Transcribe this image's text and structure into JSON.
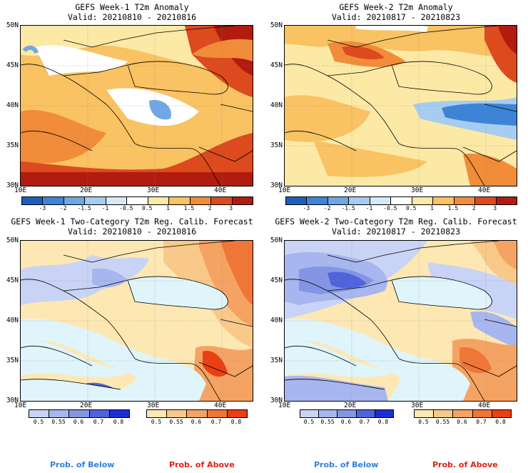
{
  "panels": [
    {
      "title": "GEFS Week-1 T2m Anomaly",
      "valid": "Valid: 20210810 - 20210816",
      "kind": "anom"
    },
    {
      "title": "GEFS Week-2 T2m Anomaly",
      "valid": "Valid: 20210817 - 20210823",
      "kind": "anom"
    },
    {
      "title": "GEFS Week-1 Two-Category T2m Reg. Calib. Forecast",
      "valid": "Valid: 20210810 - 20210816",
      "kind": "prob"
    },
    {
      "title": "GEFS Week-2 Two-Category T2m Reg. Calib. Forecast",
      "valid": "Valid: 20210817 - 20210823",
      "kind": "prob"
    }
  ],
  "lat_labels": [
    "50N",
    "45N",
    "40N",
    "35N",
    "30N"
  ],
  "lon_labels": [
    "10E",
    "20E",
    "30E",
    "40E"
  ],
  "anomaly_colorbar": {
    "labels": [
      "-3",
      "-2",
      "-1.5",
      "-1",
      "-0.5",
      "0.5",
      "1",
      "1.5",
      "2",
      "3"
    ],
    "colors": [
      "#1b5fbe",
      "#3d84d6",
      "#6fa8e4",
      "#a6cdf0",
      "#d6e9f9",
      "#ffffff",
      "#fde9a6",
      "#f9c262",
      "#f08c3a",
      "#dc4a1e",
      "#b21b0f"
    ]
  },
  "below_colorbar": {
    "labels": [
      "0.5",
      "0.55",
      "0.6",
      "0.7",
      "0.8"
    ],
    "colors": [
      "#c9d3f5",
      "#a7b6ee",
      "#8495e6",
      "#5163db",
      "#1b2fd3"
    ]
  },
  "above_colorbar": {
    "labels": [
      "0.5",
      "0.55",
      "0.6",
      "0.7",
      "0.8"
    ],
    "colors": [
      "#fde8b4",
      "#f9c98a",
      "#f5a363",
      "#f07638",
      "#ea3f12"
    ]
  },
  "prob_below_label": "Prob. of Below",
  "prob_above_label": "Prob. of Above",
  "colors": {
    "below_text": "#2f7fd9",
    "above_text": "#e21f10",
    "sea": "#dff4fb"
  }
}
